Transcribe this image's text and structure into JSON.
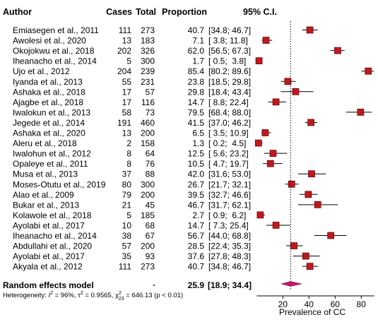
{
  "chart_data": {
    "type": "forest",
    "headers": {
      "author": "Author",
      "cases": "Cases",
      "total": "Total",
      "proportion": "Proportion",
      "ci": "95% C.I."
    },
    "studies": [
      {
        "author": "Emiasegen  et al., 2011",
        "cases": "111",
        "total": "273",
        "proportion": "40.7",
        "ci": "[34.8; 46.7]",
        "p": 40.7,
        "lo": 34.8,
        "hi": 46.7
      },
      {
        "author": "Awolesi et al., 2020",
        "cases": "13",
        "total": "183",
        "proportion": "7.1",
        "ci": "[ 3.8; 11.8]",
        "p": 7.1,
        "lo": 3.8,
        "hi": 11.8
      },
      {
        "author": "Okojokwu et al., 2018",
        "cases": "202",
        "total": "326",
        "proportion": "62.0",
        "ci": "[56.5; 67.3]",
        "p": 62.0,
        "lo": 56.5,
        "hi": 67.3
      },
      {
        "author": "Iheanacho et al., 2014",
        "cases": "5",
        "total": "300",
        "proportion": "1.7",
        "ci": "[ 0.5;  3.8]",
        "p": 1.7,
        "lo": 0.5,
        "hi": 3.8
      },
      {
        "author": "Ujo et al., 2012",
        "cases": "204",
        "total": "239",
        "proportion": "85.4",
        "ci": "[80.2; 89.6]",
        "p": 85.4,
        "lo": 80.2,
        "hi": 89.6
      },
      {
        "author": "Iyanda et al., 2013",
        "cases": "55",
        "total": "231",
        "proportion": "23.8",
        "ci": "[18.5; 29.8]",
        "p": 23.8,
        "lo": 18.5,
        "hi": 29.8
      },
      {
        "author": "Ashaka et al., 2018",
        "cases": "17",
        "total": "57",
        "proportion": "29.8",
        "ci": "[18.4; 43.4]",
        "p": 29.8,
        "lo": 18.4,
        "hi": 43.4
      },
      {
        "author": "Ajagbe et al., 2018",
        "cases": "17",
        "total": "116",
        "proportion": "14.7",
        "ci": "[ 8.8; 22.4]",
        "p": 14.7,
        "lo": 8.8,
        "hi": 22.4
      },
      {
        "author": "Iwalokun et al., 2013",
        "cases": "58",
        "total": "73",
        "proportion": "79.5",
        "ci": "[68.4; 88.0]",
        "p": 79.5,
        "lo": 68.4,
        "hi": 88.0
      },
      {
        "author": "Jegede et al., 2014",
        "cases": "191",
        "total": "460",
        "proportion": "41.5",
        "ci": "[37.0; 46.2]",
        "p": 41.5,
        "lo": 37.0,
        "hi": 46.2
      },
      {
        "author": "Ashaka et al., 2020",
        "cases": "13",
        "total": "200",
        "proportion": "6.5",
        "ci": "[ 3.5; 10.9]",
        "p": 6.5,
        "lo": 3.5,
        "hi": 10.9
      },
      {
        "author": "Aleru et al., 2018",
        "cases": "2",
        "total": "158",
        "proportion": "1.3",
        "ci": "[ 0.2;  4.5]",
        "p": 1.3,
        "lo": 0.2,
        "hi": 4.5
      },
      {
        "author": "Iwalohun et al., 2012",
        "cases": "8",
        "total": "64",
        "proportion": "12.5",
        "ci": "[ 5.6; 23.2]",
        "p": 12.5,
        "lo": 5.6,
        "hi": 23.2
      },
      {
        "author": "Opaleye et al., 2011",
        "cases": "8",
        "total": "76",
        "proportion": "10.5",
        "ci": "[ 4.7; 19.7]",
        "p": 10.5,
        "lo": 4.7,
        "hi": 19.7
      },
      {
        "author": "Musa et al., 2013",
        "cases": "37",
        "total": "88",
        "proportion": "42.0",
        "ci": "[31.6; 53.0]",
        "p": 42.0,
        "lo": 31.6,
        "hi": 53.0
      },
      {
        "author": "Moses-Otutu et al., 2019",
        "cases": "80",
        "total": "300",
        "proportion": "26.7",
        "ci": "[21.7; 32.1]",
        "p": 26.7,
        "lo": 21.7,
        "hi": 32.1
      },
      {
        "author": "Alao et al., 2009",
        "cases": "79",
        "total": "200",
        "proportion": "39.5",
        "ci": "[32.7; 46.6]",
        "p": 39.5,
        "lo": 32.7,
        "hi": 46.6
      },
      {
        "author": "Bukar et al., 2013",
        "cases": "21",
        "total": "45",
        "proportion": "46.7",
        "ci": "[31.7; 62.1]",
        "p": 46.7,
        "lo": 31.7,
        "hi": 62.1
      },
      {
        "author": "Kolawole  et al., 2018",
        "cases": "5",
        "total": "185",
        "proportion": "2.7",
        "ci": "[ 0.9;  6.2]",
        "p": 2.7,
        "lo": 0.9,
        "hi": 6.2
      },
      {
        "author": "Ayolabi et al., 2017",
        "cases": "10",
        "total": "68",
        "proportion": "14.7",
        "ci": "[ 7.3; 25.4]",
        "p": 14.7,
        "lo": 7.3,
        "hi": 25.4
      },
      {
        "author": "Iheanacho et al., 2014",
        "cases": "38",
        "total": "67",
        "proportion": "56.7",
        "ci": "[44.0; 68.8]",
        "p": 56.7,
        "lo": 44.0,
        "hi": 68.8
      },
      {
        "author": "Abdullahi et al., 2020",
        "cases": "57",
        "total": "200",
        "proportion": "28.5",
        "ci": "[22.4; 35.3]",
        "p": 28.5,
        "lo": 22.4,
        "hi": 35.3
      },
      {
        "author": "Ayolabi et al., 2017",
        "cases": "35",
        "total": "93",
        "proportion": "37.6",
        "ci": "[27.8; 48.3]",
        "p": 37.6,
        "lo": 27.8,
        "hi": 48.3
      },
      {
        "author": "Akyala et al., 2012",
        "cases": "111",
        "total": "273",
        "proportion": "40.7",
        "ci": "[34.8; 46.7]",
        "p": 40.7,
        "lo": 34.8,
        "hi": 46.7
      }
    ],
    "summary": {
      "label": "Random effects model",
      "dot": ".",
      "proportion": "25.9",
      "ci": "[18.9; 34.4]",
      "p": 25.9,
      "lo": 18.9,
      "hi": 34.4
    },
    "heterogeneity": {
      "prefix": "Heterogeneity: ",
      "i2_symbol": "I",
      "i2_sup": "2",
      "i2_value": " = 96%, ",
      "tau_symbol": "τ",
      "tau_sup": "2",
      "tau_value": " = 0.9565, ",
      "chi_symbol": "χ",
      "chi_sup": "2",
      "chi_sub": "23",
      "chi_value": " = 646.13 (p < 0.01)"
    },
    "x_axis": {
      "ticks": [
        20,
        40,
        60,
        80
      ],
      "range": [
        0,
        90
      ],
      "label": "Prevalence of CC"
    },
    "colors": {
      "marker": "#c0191f",
      "marker_stroke": "#5a0000",
      "diamond": "#c2186b",
      "ci_line": "#000000"
    }
  }
}
